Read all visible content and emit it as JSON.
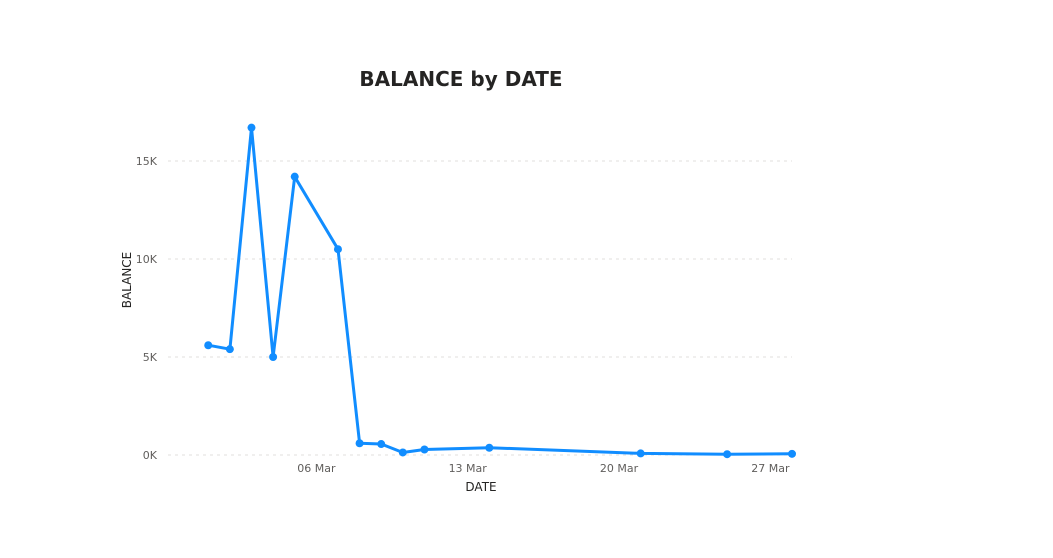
{
  "chart_data": {
    "type": "line",
    "title": "BALANCE by DATE",
    "xlabel": "DATE",
    "ylabel": "BALANCE",
    "color": "#118DFF",
    "grid": true,
    "xlim": [
      "2024-02-28",
      "2024-03-28"
    ],
    "ylim": [
      0,
      17000
    ],
    "yticks": [
      {
        "value": 0,
        "label": "0K"
      },
      {
        "value": 5000,
        "label": "5K"
      },
      {
        "value": 10000,
        "label": "10K"
      },
      {
        "value": 15000,
        "label": "15K"
      }
    ],
    "xticks": [
      {
        "value": "2024-03-06",
        "label": "06 Mar"
      },
      {
        "value": "2024-03-13",
        "label": "13 Mar"
      },
      {
        "value": "2024-03-20",
        "label": "20 Mar"
      },
      {
        "value": "2024-03-27",
        "label": "27 Mar"
      }
    ],
    "series": [
      {
        "points": [
          {
            "x": "2024-03-01",
            "y": 5600
          },
          {
            "x": "2024-03-02",
            "y": 5400
          },
          {
            "x": "2024-03-03",
            "y": 16700
          },
          {
            "x": "2024-03-04",
            "y": 5000
          },
          {
            "x": "2024-03-05",
            "y": 14200
          },
          {
            "x": "2024-03-07",
            "y": 10500
          },
          {
            "x": "2024-03-08",
            "y": 600
          },
          {
            "x": "2024-03-09",
            "y": 560
          },
          {
            "x": "2024-03-10",
            "y": 130
          },
          {
            "x": "2024-03-11",
            "y": 280
          },
          {
            "x": "2024-03-14",
            "y": 370
          },
          {
            "x": "2024-03-21",
            "y": 80
          },
          {
            "x": "2024-03-25",
            "y": 40
          },
          {
            "x": "2024-03-28",
            "y": 60
          }
        ]
      }
    ]
  }
}
